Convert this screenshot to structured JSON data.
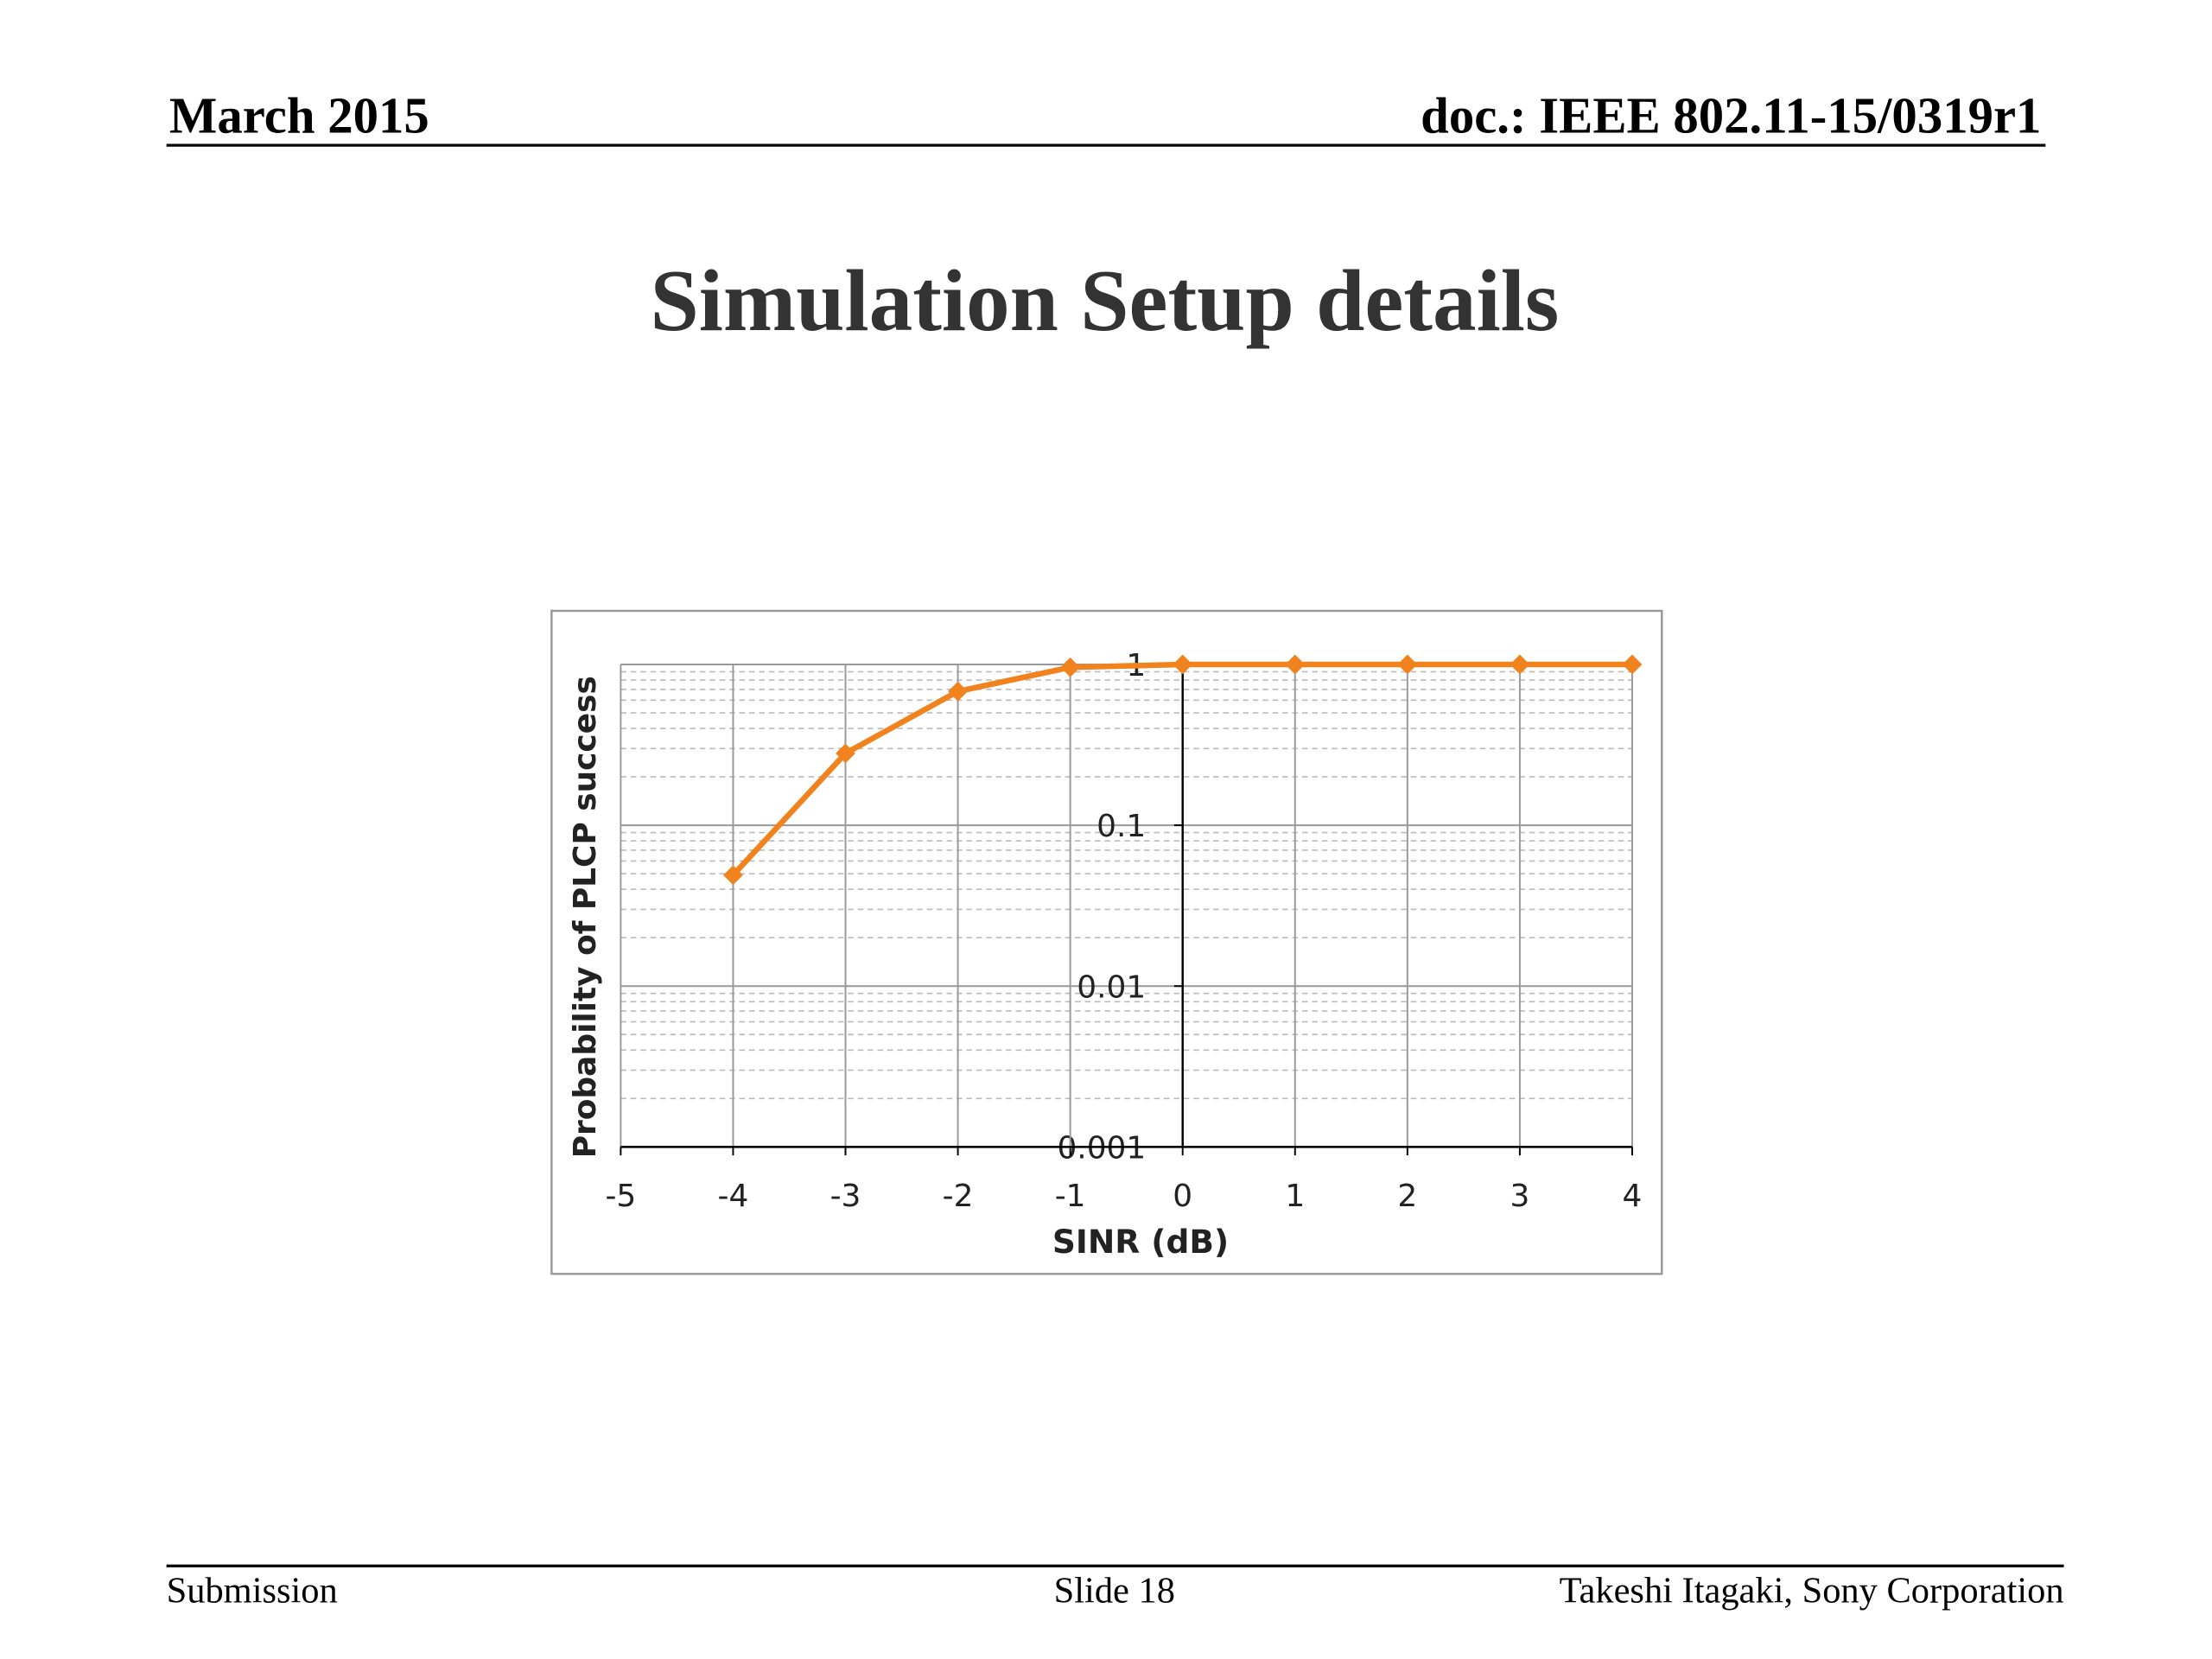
{
  "header": {
    "date": "March 2015",
    "doc": "doc.: IEEE 802.11-15/0319r1"
  },
  "title": "Simulation Setup details",
  "chart_data": {
    "type": "line",
    "x_label": "SINR (dB)",
    "y_label": "Probability of PLCP success",
    "x": [
      -4,
      -3,
      -2,
      -1,
      0,
      1,
      2,
      3,
      4
    ],
    "values": [
      0.049,
      0.28,
      0.68,
      0.96,
      1,
      1,
      1,
      1,
      1
    ],
    "color": "#f0831e",
    "xlim": [
      -5,
      4
    ],
    "xticks": [
      -5,
      -4,
      -3,
      -2,
      -1,
      0,
      1,
      2,
      3,
      4
    ],
    "ylim": [
      0.001,
      1
    ],
    "yticks": [
      0.001,
      0.01,
      0.1,
      1
    ],
    "log_y": true,
    "grid": true,
    "minor_grid": true
  },
  "footer": {
    "left": "Submission",
    "center": "Slide 18",
    "right": "Takeshi Itagaki, Sony Corporation"
  }
}
